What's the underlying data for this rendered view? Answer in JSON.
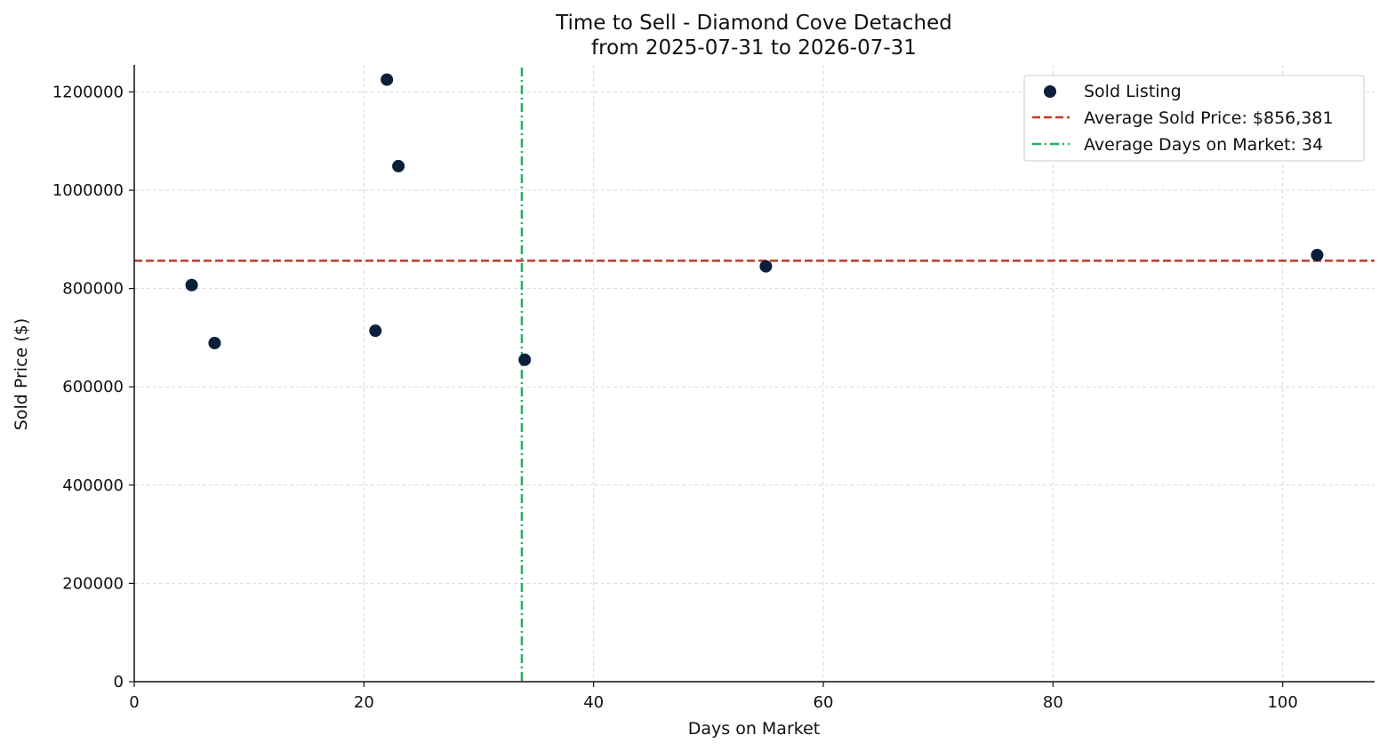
{
  "chart_data": {
    "type": "scatter",
    "title": "Time to Sell - Diamond Cove Detached",
    "subtitle": "from 2025-07-31 to 2026-07-31",
    "xlabel": "Days on Market",
    "ylabel": "Sold Price ($)",
    "xlim": [
      0,
      108
    ],
    "ylim": [
      0,
      1255000
    ],
    "x_ticks": [
      0,
      20,
      40,
      60,
      80,
      100
    ],
    "y_ticks": [
      0,
      200000,
      400000,
      600000,
      800000,
      1000000,
      1200000
    ],
    "grid": true,
    "legend_position": "top-right",
    "series": [
      {
        "name": "Sold Listing",
        "color": "#0b1f3a",
        "points": [
          {
            "x": 5,
            "y": 807000
          },
          {
            "x": 7,
            "y": 689000
          },
          {
            "x": 21,
            "y": 714000
          },
          {
            "x": 22,
            "y": 1225000
          },
          {
            "x": 23,
            "y": 1049000
          },
          {
            "x": 34,
            "y": 655000
          },
          {
            "x": 55,
            "y": 845000
          },
          {
            "x": 103,
            "y": 868000
          }
        ]
      }
    ],
    "reference_lines": {
      "avg_price": {
        "label": "Average Sold Price: $856,381",
        "value": 856381,
        "color": "#c0392b",
        "style": "dashed"
      },
      "avg_days": {
        "label": "Average Days on Market: 34",
        "value": 33.75,
        "color": "#27ae60",
        "style": "dash-dot"
      }
    }
  }
}
